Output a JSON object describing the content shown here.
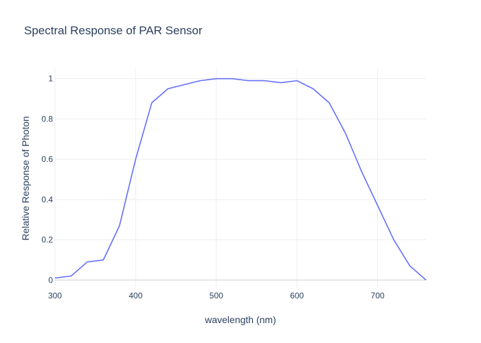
{
  "chart_data": {
    "type": "line",
    "title": "Spectral Response of PAR Sensor",
    "xlabel": "wavelength (nm)",
    "ylabel": "Relative Response of Photon",
    "xlim": [
      300,
      760
    ],
    "ylim": [
      -0.04,
      1.05
    ],
    "x_ticks": [
      300,
      400,
      500,
      600,
      700
    ],
    "x_tick_labels": [
      "300",
      "400",
      "500",
      "600",
      "700"
    ],
    "y_ticks": [
      0,
      0.2,
      0.4,
      0.6,
      0.8,
      1
    ],
    "y_tick_labels": [
      "0",
      "0.2",
      "0.4",
      "0.6",
      "0.8",
      "1"
    ],
    "grid": true,
    "series": [
      {
        "color": "#636efa",
        "x": [
          300,
          320,
          340,
          360,
          380,
          400,
          420,
          440,
          460,
          480,
          500,
          520,
          540,
          560,
          580,
          600,
          620,
          640,
          660,
          680,
          700,
          720,
          740,
          760
        ],
        "y": [
          0.01,
          0.02,
          0.09,
          0.1,
          0.27,
          0.6,
          0.88,
          0.95,
          0.97,
          0.99,
          1.0,
          1.0,
          0.99,
          0.99,
          0.98,
          0.99,
          0.95,
          0.88,
          0.73,
          0.54,
          0.37,
          0.2,
          0.07,
          0.0
        ]
      }
    ]
  }
}
